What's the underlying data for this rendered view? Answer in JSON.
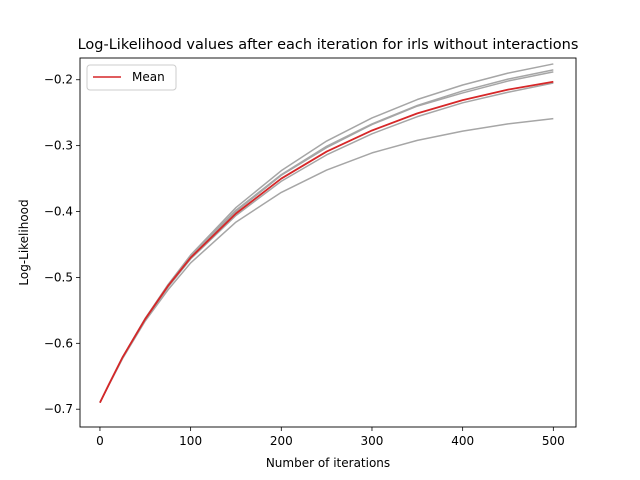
{
  "chart_data": {
    "type": "line",
    "title": "Log-Likelihood values after each iteration for irls without interactions",
    "xlabel": "Number of iterations",
    "ylabel": "Log-Likelihood",
    "xlim": [
      -22,
      525
    ],
    "ylim": [
      -0.727,
      -0.167
    ],
    "xticks": [
      0,
      100,
      200,
      300,
      400,
      500
    ],
    "yticks": [
      -0.7,
      -0.6,
      -0.5,
      -0.4,
      -0.3,
      -0.2
    ],
    "ytick_labels": [
      "−0.7",
      "−0.6",
      "−0.5",
      "−0.4",
      "−0.3",
      "−0.2"
    ],
    "grid": false,
    "legend": {
      "location": "upper-left",
      "entries": [
        "Mean"
      ]
    },
    "colors": {
      "runs": "#a6a6a6",
      "mean": "#d62728"
    },
    "x": [
      0,
      10,
      25,
      50,
      75,
      100,
      150,
      200,
      250,
      300,
      350,
      400,
      450,
      500
    ],
    "series": [
      {
        "values": [
          -0.69,
          -0.662,
          -0.621,
          -0.562,
          -0.511,
          -0.466,
          -0.394,
          -0.338,
          -0.293,
          -0.258,
          -0.23,
          -0.208,
          -0.19,
          -0.176
        ]
      },
      {
        "values": [
          -0.69,
          -0.662,
          -0.621,
          -0.563,
          -0.512,
          -0.469,
          -0.4,
          -0.345,
          -0.303,
          -0.268,
          -0.24,
          -0.22,
          -0.202,
          -0.188
        ]
      },
      {
        "values": [
          -0.69,
          -0.662,
          -0.621,
          -0.562,
          -0.512,
          -0.467,
          -0.398,
          -0.344,
          -0.301,
          -0.267,
          -0.239,
          -0.217,
          -0.199,
          -0.185
        ]
      },
      {
        "values": [
          -0.69,
          -0.662,
          -0.622,
          -0.564,
          -0.515,
          -0.472,
          -0.406,
          -0.354,
          -0.314,
          -0.282,
          -0.256,
          -0.235,
          -0.219,
          -0.205
        ]
      },
      {
        "values": [
          -0.69,
          -0.663,
          -0.623,
          -0.566,
          -0.519,
          -0.478,
          -0.416,
          -0.371,
          -0.337,
          -0.311,
          -0.292,
          -0.278,
          -0.267,
          -0.259
        ]
      },
      {
        "name": "Mean",
        "values": [
          -0.69,
          -0.662,
          -0.621,
          -0.563,
          -0.513,
          -0.47,
          -0.403,
          -0.35,
          -0.309,
          -0.277,
          -0.251,
          -0.231,
          -0.215,
          -0.203
        ]
      }
    ]
  }
}
